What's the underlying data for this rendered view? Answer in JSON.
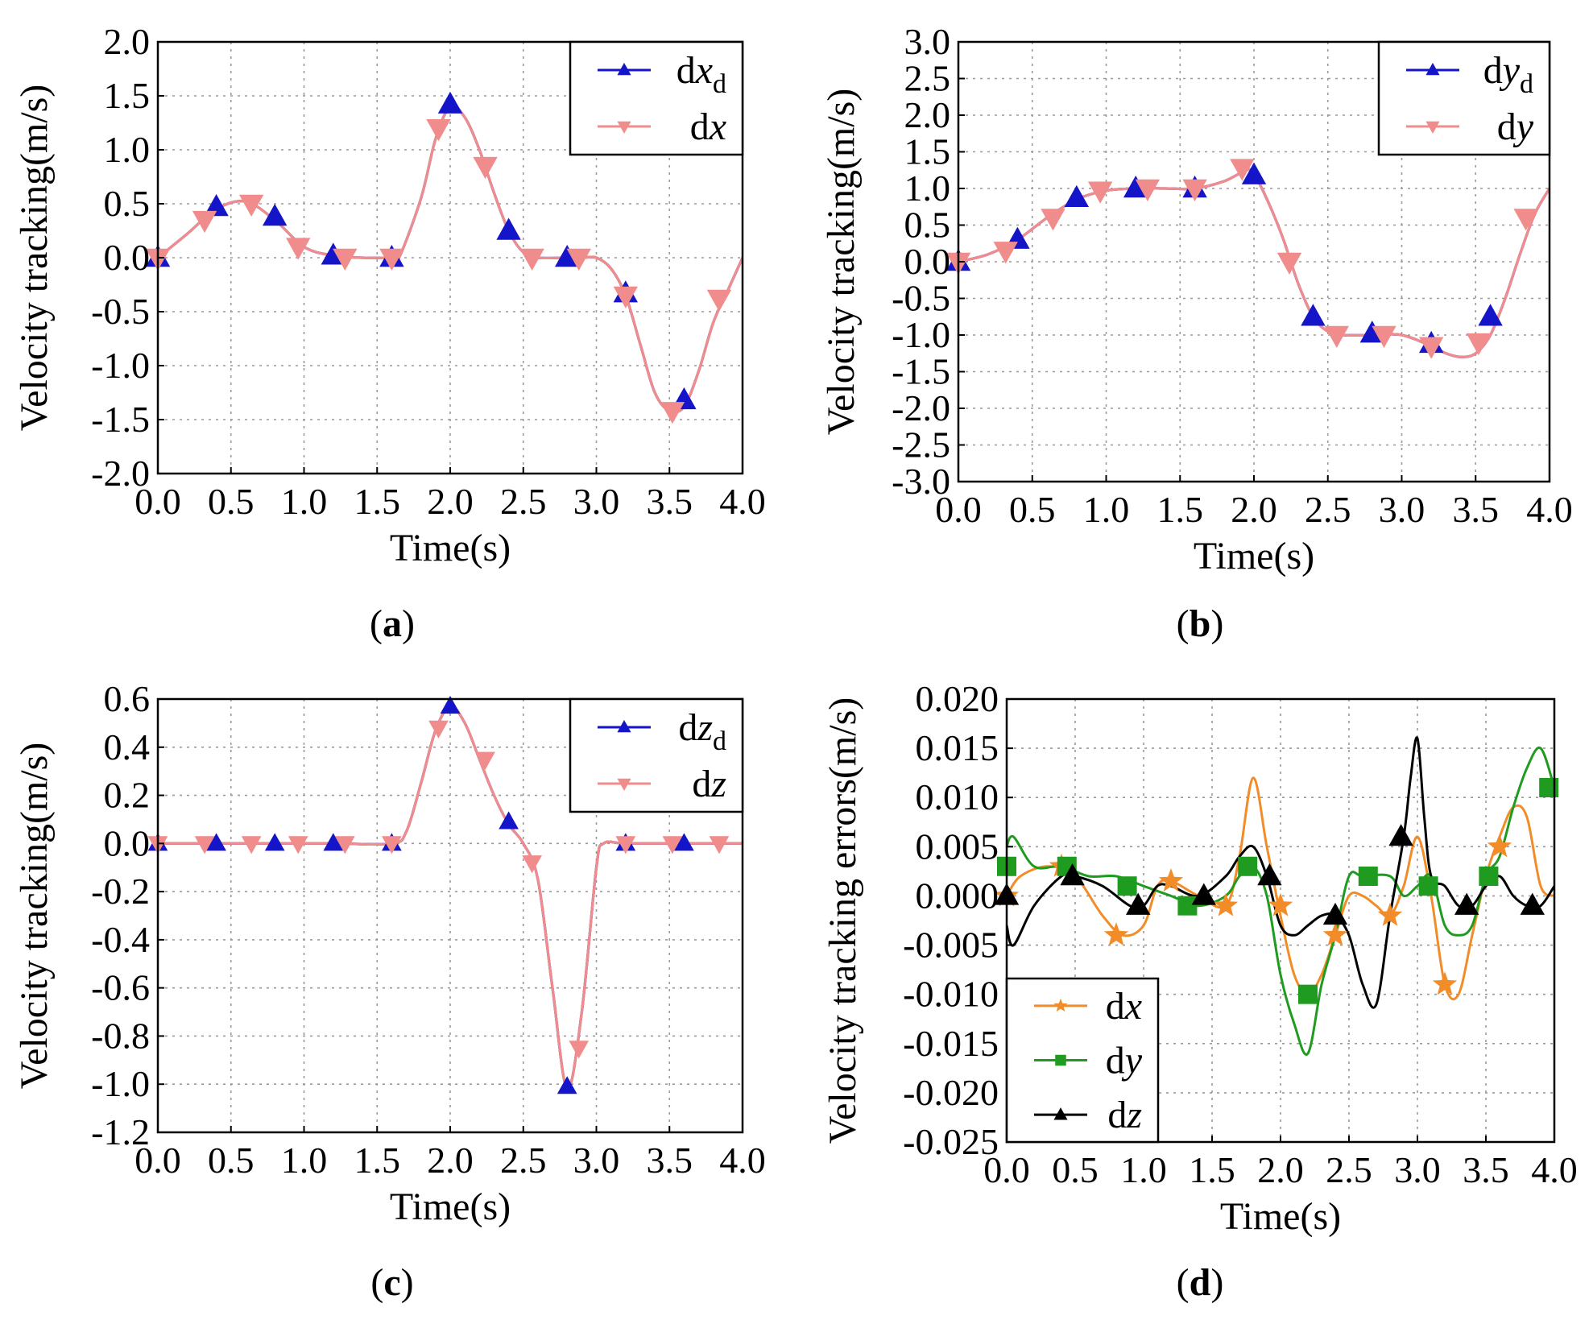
{
  "figure": {
    "panels": [
      {
        "id": "a",
        "caption_letter": "a"
      },
      {
        "id": "b",
        "caption_letter": "b"
      },
      {
        "id": "c",
        "caption_letter": "c"
      },
      {
        "id": "d",
        "caption_letter": "d"
      }
    ]
  },
  "chart_data": [
    {
      "panel": "a",
      "type": "line",
      "xlabel": "Time(s)",
      "ylabel": "Velocity tracking(m/s)",
      "xlim": [
        0,
        4
      ],
      "ylim": [
        -2,
        2
      ],
      "xticks": [
        "0.0",
        "0.5",
        "1.0",
        "1.5",
        "2.0",
        "2.5",
        "3.0",
        "3.5",
        "4.0"
      ],
      "yticks": [
        "2.0",
        "1.5",
        "1.0",
        "0.5",
        "0.0",
        "-0.5",
        "-1.0",
        "-1.5",
        "-2.0"
      ],
      "grid": true,
      "legend_position": "top-right",
      "series": [
        {
          "name": "dx_d",
          "label_base": "dx",
          "label_sub": "d",
          "color": "#1414c8",
          "marker": "triangle-up",
          "x": [
            0,
            0.2,
            0.4,
            0.6,
            0.8,
            1.0,
            1.2,
            1.4,
            1.6,
            1.65,
            1.8,
            1.9,
            2.0,
            2.1,
            2.2,
            2.3,
            2.4,
            2.5,
            2.6,
            2.8,
            2.9,
            3.0,
            3.1,
            3.2,
            3.3,
            3.4,
            3.5,
            3.6,
            3.7,
            3.8,
            3.9,
            4.0
          ],
          "y": [
            0,
            0.22,
            0.45,
            0.52,
            0.35,
            0.1,
            0.02,
            0,
            0,
            0,
            0.55,
            1.1,
            1.4,
            1.3,
            1.0,
            0.6,
            0.25,
            0.05,
            0,
            0,
            0,
            0,
            -0.1,
            -0.35,
            -0.8,
            -1.25,
            -1.42,
            -1.38,
            -1.05,
            -0.6,
            -0.3,
            0
          ]
        },
        {
          "name": "dx",
          "label_base": "dx",
          "label_sub": "",
          "color": "#f08c8c",
          "marker": "triangle-down",
          "x": [
            0,
            0.2,
            0.4,
            0.6,
            0.8,
            1.0,
            1.2,
            1.4,
            1.6,
            1.65,
            1.8,
            1.9,
            2.0,
            2.1,
            2.2,
            2.3,
            2.4,
            2.5,
            2.6,
            2.8,
            2.9,
            3.0,
            3.1,
            3.2,
            3.3,
            3.4,
            3.5,
            3.6,
            3.7,
            3.8,
            3.9,
            4.0
          ],
          "y": [
            0,
            0.22,
            0.45,
            0.52,
            0.35,
            0.1,
            0.02,
            0,
            0,
            0,
            0.55,
            1.1,
            1.4,
            1.3,
            1.0,
            0.6,
            0.25,
            0.05,
            0,
            0,
            0,
            0,
            -0.1,
            -0.35,
            -0.8,
            -1.25,
            -1.42,
            -1.38,
            -1.05,
            -0.6,
            -0.3,
            0
          ]
        }
      ],
      "markers": [
        {
          "series": "dx_d",
          "x": [
            0,
            0.4,
            0.8,
            1.2,
            1.6,
            2.0,
            2.4,
            2.8,
            3.2,
            3.6
          ],
          "y": [
            0,
            0.47,
            0.38,
            0.02,
            0,
            1.42,
            0.25,
            0,
            -0.33,
            -1.32
          ]
        },
        {
          "series": "dx",
          "x": [
            0,
            0.32,
            0.64,
            0.96,
            1.28,
            1.6,
            1.92,
            2.24,
            2.56,
            2.88,
            3.2,
            3.52,
            3.84
          ],
          "y": [
            0,
            0.35,
            0.5,
            0.1,
            0,
            0,
            1.2,
            0.85,
            0,
            0,
            -0.35,
            -1.42,
            -0.38
          ]
        }
      ]
    },
    {
      "panel": "b",
      "type": "line",
      "xlabel": "Time(s)",
      "ylabel": "Velocity tracking(m/s)",
      "xlim": [
        0,
        4
      ],
      "ylim": [
        -3,
        3
      ],
      "xticks": [
        "0.0",
        "0.5",
        "1.0",
        "1.5",
        "2.0",
        "2.5",
        "3.0",
        "3.5",
        "4.0"
      ],
      "yticks": [
        "3.0",
        "2.5",
        "2.0",
        "1.5",
        "1.0",
        "0.5",
        "0.0",
        "-0.5",
        "-1.0",
        "-1.5",
        "-2.0",
        "-2.5",
        "-3.0"
      ],
      "grid": true,
      "legend_position": "top-right",
      "series": [
        {
          "name": "dy_d",
          "label_base": "dy",
          "label_sub": "d",
          "color": "#1414c8",
          "marker": "triangle-up",
          "x": [
            0,
            0.2,
            0.4,
            0.6,
            0.8,
            1.0,
            1.2,
            1.4,
            1.6,
            1.8,
            1.95,
            2.0,
            2.1,
            2.2,
            2.3,
            2.4,
            2.5,
            2.6,
            2.8,
            3.0,
            3.2,
            3.3,
            3.4,
            3.5,
            3.6,
            3.7,
            3.8,
            3.9,
            4.0
          ],
          "y": [
            0,
            0.1,
            0.3,
            0.6,
            0.85,
            0.97,
            1.0,
            1.0,
            1.0,
            1.1,
            1.25,
            1.2,
            0.8,
            0.3,
            -0.3,
            -0.75,
            -0.95,
            -1.0,
            -1.0,
            -1.0,
            -1.15,
            -1.25,
            -1.3,
            -1.25,
            -1.0,
            -0.5,
            0.1,
            0.65,
            1.0
          ]
        },
        {
          "name": "dy",
          "label_base": "dy",
          "label_sub": "",
          "color": "#f08c8c",
          "marker": "triangle-down",
          "x": [
            0,
            0.2,
            0.4,
            0.6,
            0.8,
            1.0,
            1.2,
            1.4,
            1.6,
            1.8,
            1.95,
            2.0,
            2.1,
            2.2,
            2.3,
            2.4,
            2.5,
            2.6,
            2.8,
            3.0,
            3.2,
            3.3,
            3.4,
            3.5,
            3.6,
            3.7,
            3.8,
            3.9,
            4.0
          ],
          "y": [
            0,
            0.1,
            0.3,
            0.6,
            0.85,
            0.97,
            1.0,
            1.0,
            1.0,
            1.1,
            1.25,
            1.2,
            0.8,
            0.3,
            -0.3,
            -0.75,
            -0.95,
            -1.0,
            -1.0,
            -1.0,
            -1.15,
            -1.25,
            -1.3,
            -1.25,
            -1.0,
            -0.5,
            0.1,
            0.65,
            1.0
          ]
        }
      ],
      "markers": [
        {
          "series": "dy_d",
          "x": [
            0,
            0.4,
            0.8,
            1.2,
            1.6,
            2.0,
            2.4,
            2.8,
            3.2,
            3.6
          ],
          "y": [
            0,
            0.3,
            0.87,
            1.0,
            1.0,
            1.18,
            -0.75,
            -0.98,
            -1.12,
            -0.75
          ]
        },
        {
          "series": "dy",
          "x": [
            0,
            0.32,
            0.64,
            0.96,
            1.28,
            1.6,
            1.92,
            2.24,
            2.56,
            2.88,
            3.2,
            3.52,
            3.84
          ],
          "y": [
            0,
            0.15,
            0.6,
            0.97,
            1.0,
            1.0,
            1.28,
            0,
            -1.0,
            -1.0,
            -1.15,
            -1.1,
            0.6
          ]
        }
      ]
    },
    {
      "panel": "c",
      "type": "line",
      "xlabel": "Time(s)",
      "ylabel": "Velocity tracking(m/s)",
      "xlim": [
        0,
        4
      ],
      "ylim": [
        -1.2,
        0.6
      ],
      "xticks": [
        "0.0",
        "0.5",
        "1.0",
        "1.5",
        "2.0",
        "2.5",
        "3.0",
        "3.5",
        "4.0"
      ],
      "yticks": [
        "0.6",
        "0.4",
        "0.2",
        "0.0",
        "-0.2",
        "-0.4",
        "-0.6",
        "-0.8",
        "-1.0",
        "-1.2"
      ],
      "grid": true,
      "legend_position": "top-right",
      "series": [
        {
          "name": "dz_d",
          "label_base": "dz",
          "label_sub": "d",
          "color": "#1414c8",
          "marker": "triangle-up",
          "x": [
            0,
            0.4,
            0.8,
            1.2,
            1.6,
            1.7,
            1.8,
            1.9,
            2.0,
            2.1,
            2.2,
            2.3,
            2.4,
            2.5,
            2.6,
            2.7,
            2.8,
            2.9,
            3.0,
            3.05,
            3.2,
            3.6,
            4.0
          ],
          "y": [
            0,
            0,
            0,
            0,
            0,
            0.05,
            0.25,
            0.47,
            0.57,
            0.5,
            0.35,
            0.2,
            0.08,
            0,
            -0.15,
            -0.6,
            -1.02,
            -0.7,
            -0.1,
            0,
            0,
            0,
            0
          ]
        },
        {
          "name": "dz",
          "label_base": "dz",
          "label_sub": "",
          "color": "#f08c8c",
          "marker": "triangle-down",
          "x": [
            0,
            0.4,
            0.8,
            1.2,
            1.6,
            1.7,
            1.8,
            1.9,
            2.0,
            2.1,
            2.2,
            2.3,
            2.4,
            2.5,
            2.6,
            2.7,
            2.8,
            2.9,
            3.0,
            3.05,
            3.2,
            3.6,
            4.0
          ],
          "y": [
            0,
            0,
            0,
            0,
            0,
            0.05,
            0.25,
            0.47,
            0.57,
            0.5,
            0.35,
            0.2,
            0.08,
            0,
            -0.15,
            -0.6,
            -1.02,
            -0.7,
            -0.1,
            0,
            0,
            0,
            0
          ]
        }
      ],
      "markers": [
        {
          "series": "dz_d",
          "x": [
            0,
            0.4,
            0.8,
            1.2,
            1.6,
            2.0,
            2.4,
            2.8,
            3.2,
            3.6
          ],
          "y": [
            0,
            0,
            0,
            0,
            0,
            0.57,
            0.09,
            -1.01,
            0,
            0
          ]
        },
        {
          "series": "dz",
          "x": [
            0,
            0.32,
            0.64,
            0.96,
            1.28,
            1.6,
            1.92,
            2.24,
            2.56,
            2.88,
            3.2,
            3.52,
            3.84
          ],
          "y": [
            0,
            0,
            0,
            0,
            0,
            0,
            0.48,
            0.35,
            -0.08,
            -0.85,
            0,
            0,
            0
          ]
        }
      ]
    },
    {
      "panel": "d",
      "type": "line",
      "xlabel": "Time(s)",
      "ylabel": "Velocity tracking errors(m/s)",
      "xlim": [
        0,
        4
      ],
      "ylim": [
        -0.025,
        0.02
      ],
      "xticks": [
        "0.0",
        "0.5",
        "1.0",
        "1.5",
        "2.0",
        "2.5",
        "3.0",
        "3.5",
        "4.0"
      ],
      "yticks": [
        "0.020",
        "0.015",
        "0.010",
        "0.005",
        "0.000",
        "-0.005",
        "-0.010",
        "-0.015",
        "-0.020",
        "-0.025"
      ],
      "grid": true,
      "legend_position": "bottom-left",
      "series": [
        {
          "name": "dx",
          "label_base": "dx",
          "label_sub": "",
          "color": "#f28c28",
          "marker": "star",
          "x": [
            0,
            0.1,
            0.3,
            0.5,
            0.7,
            0.85,
            1.0,
            1.1,
            1.2,
            1.4,
            1.6,
            1.7,
            1.8,
            1.9,
            2.0,
            2.1,
            2.2,
            2.3,
            2.4,
            2.5,
            2.6,
            2.7,
            2.8,
            2.9,
            3.0,
            3.1,
            3.2,
            3.3,
            3.4,
            3.5,
            3.6,
            3.7,
            3.8,
            3.9,
            4.0
          ],
          "y": [
            0,
            0.002,
            0.003,
            0.002,
            -0.002,
            -0.004,
            -0.003,
            0.001,
            0.0015,
            0,
            -0.001,
            0.004,
            0.012,
            0.005,
            -0.002,
            -0.008,
            -0.01,
            -0.008,
            -0.004,
            0,
            0,
            -0.001,
            -0.002,
            0.001,
            0.006,
            0,
            -0.009,
            -0.01,
            -0.004,
            0.002,
            0.006,
            0.009,
            0.008,
            0.001,
            0
          ]
        },
        {
          "name": "dy",
          "label_base": "dy",
          "label_sub": "",
          "color": "#1f9b1f",
          "marker": "square",
          "x": [
            0,
            0.05,
            0.2,
            0.4,
            0.6,
            0.8,
            1.0,
            1.2,
            1.4,
            1.6,
            1.7,
            1.8,
            1.9,
            2.0,
            2.1,
            2.2,
            2.3,
            2.4,
            2.5,
            2.6,
            2.8,
            2.9,
            3.0,
            3.1,
            3.2,
            3.3,
            3.4,
            3.5,
            3.6,
            3.7,
            3.8,
            3.9,
            4.0
          ],
          "y": [
            0.005,
            0.006,
            0.003,
            0.003,
            0.002,
            0.002,
            0.001,
            0,
            -0.001,
            0,
            0.002,
            0.003,
            0,
            -0.008,
            -0.013,
            -0.016,
            -0.009,
            -0.004,
            0.002,
            0.002,
            0.002,
            0.0,
            0.001,
            0.002,
            -0.003,
            -0.004,
            -0.003,
            0.002,
            0.004,
            0.009,
            0.013,
            0.015,
            0.011
          ]
        },
        {
          "name": "dz",
          "label_base": "dz",
          "label_sub": "",
          "color": "#000000",
          "marker": "triangle-up",
          "x": [
            0,
            0.05,
            0.2,
            0.4,
            0.5,
            0.7,
            0.9,
            1.0,
            1.1,
            1.2,
            1.4,
            1.6,
            1.7,
            1.8,
            1.9,
            2.0,
            2.1,
            2.2,
            2.3,
            2.4,
            2.5,
            2.6,
            2.7,
            2.8,
            2.9,
            2.95,
            3.0,
            3.05,
            3.1,
            3.2,
            3.3,
            3.4,
            3.5,
            3.6,
            3.7,
            3.8,
            3.9,
            4.0
          ],
          "y": [
            -0.003,
            -0.005,
            -0.001,
            0.002,
            0.002,
            0.001,
            -0.001,
            -0.001,
            0.001,
            0.001,
            0,
            0.002,
            0.004,
            0.005,
            0.002,
            -0.003,
            -0.004,
            -0.003,
            -0.002,
            -0.002,
            -0.004,
            -0.009,
            -0.011,
            -0.002,
            0.006,
            0.012,
            0.016,
            0.008,
            0.002,
            0.001,
            -0.001,
            -0.001,
            0.001,
            0.002,
            0.0,
            -0.001,
            -0.001,
            0.001
          ]
        }
      ],
      "markers": [
        {
          "series": "dx",
          "x": [
            0,
            0.4,
            0.8,
            1.2,
            1.6,
            2.0,
            2.4,
            2.8,
            3.2,
            3.6
          ],
          "y": [
            0,
            0.003,
            -0.004,
            0.0015,
            -0.001,
            -0.001,
            -0.004,
            -0.002,
            -0.009,
            0.005
          ]
        },
        {
          "series": "dy",
          "x": [
            0,
            0.44,
            0.88,
            1.32,
            1.76,
            2.2,
            2.64,
            3.08,
            3.52,
            3.96
          ],
          "y": [
            0.003,
            0.003,
            0.001,
            -0.001,
            0.003,
            -0.01,
            0.002,
            0.001,
            0.002,
            0.011
          ]
        },
        {
          "series": "dz",
          "x": [
            0,
            0.48,
            0.96,
            1.44,
            1.92,
            2.4,
            2.88,
            3.36,
            3.84
          ],
          "y": [
            0,
            0.002,
            -0.001,
            0,
            0.002,
            -0.002,
            0.006,
            -0.001,
            -0.001
          ]
        }
      ]
    }
  ],
  "captions": {
    "a": "a",
    "b": "b",
    "c": "c",
    "d": "d"
  }
}
